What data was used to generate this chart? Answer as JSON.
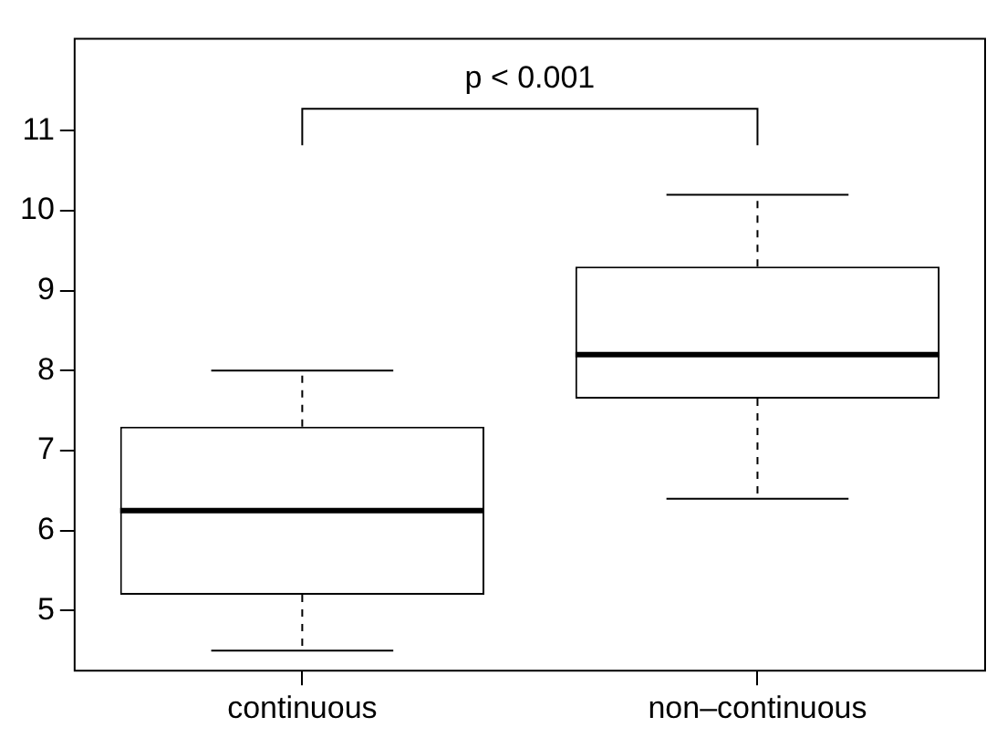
{
  "chart_data": {
    "type": "box",
    "categories": [
      "continuous",
      "non–continuous"
    ],
    "boxes": [
      {
        "low": 4.5,
        "q1": 5.2,
        "median": 6.25,
        "q3": 7.3,
        "high": 8.0
      },
      {
        "low": 6.4,
        "q1": 7.65,
        "median": 8.2,
        "q3": 9.3,
        "high": 10.2
      }
    ],
    "ylim": [
      4.25,
      12.15
    ],
    "yticks": [
      5,
      6,
      7,
      8,
      9,
      10,
      11
    ],
    "grid": false,
    "legend": false,
    "annotations": [
      "p < 0.001"
    ]
  }
}
